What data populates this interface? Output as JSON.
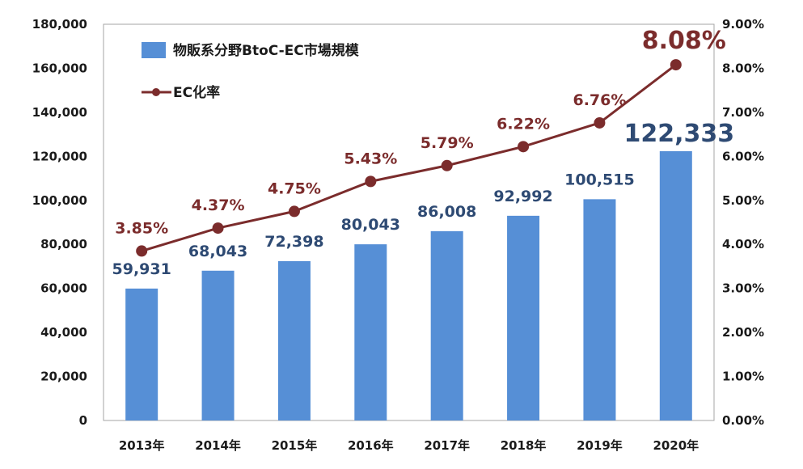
{
  "chart_data": {
    "type": "bar",
    "categories": [
      "2013年",
      "2014年",
      "2015年",
      "2016年",
      "2017年",
      "2018年",
      "2019年",
      "2020年"
    ],
    "series": [
      {
        "name": "物販系分野BtoC-EC市場規模",
        "type": "bar",
        "axis": "left",
        "values": [
          59931,
          68043,
          72398,
          80043,
          86008,
          92992,
          100515,
          122333
        ],
        "labels": [
          "59,931",
          "68,043",
          "72,398",
          "80,043",
          "86,008",
          "92,992",
          "100,515",
          "122,333"
        ],
        "color": "#568fd6"
      },
      {
        "name": "EC化率",
        "type": "line",
        "axis": "right",
        "values": [
          3.85,
          4.37,
          4.75,
          5.43,
          5.79,
          6.22,
          6.76,
          8.08
        ],
        "labels": [
          "3.85%",
          "4.37%",
          "4.75%",
          "5.43%",
          "5.79%",
          "6.22%",
          "6.76%",
          "8.08%"
        ],
        "color": "#7b2c2c"
      }
    ],
    "y_left": {
      "min": 0,
      "max": 180000,
      "ticks": [
        "0",
        "20,000",
        "40,000",
        "60,000",
        "80,000",
        "100,000",
        "120,000",
        "140,000",
        "160,000",
        "180,000"
      ]
    },
    "y_right": {
      "min": 0,
      "max": 9,
      "ticks": [
        "0.00%",
        "1.00%",
        "2.00%",
        "3.00%",
        "4.00%",
        "5.00%",
        "6.00%",
        "7.00%",
        "8.00%",
        "9.00%"
      ]
    },
    "legend": {
      "position": "top-left",
      "items": [
        "物販系分野BtoC-EC市場規模",
        "EC化率"
      ]
    },
    "grid": false,
    "title": "",
    "xlabel": "",
    "ylabel": ""
  }
}
